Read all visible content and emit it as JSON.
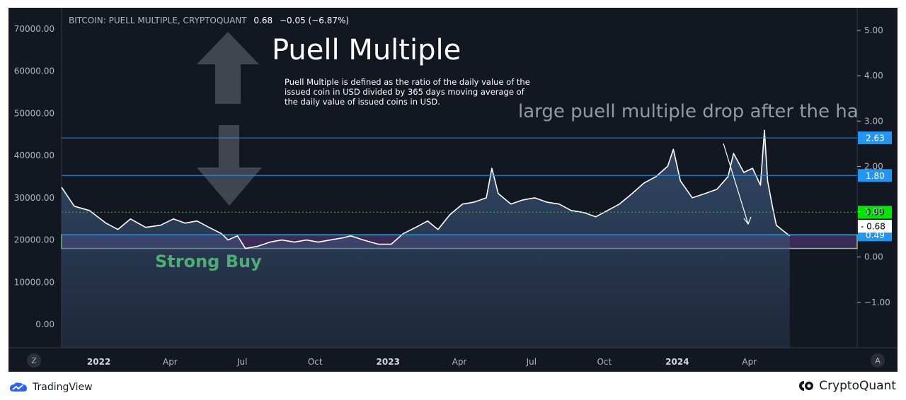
{
  "legend": {
    "symbol": "BITCOIN: PUELL MULTIPLE, CRYPTOQUANT",
    "last": "0.68",
    "change": "−0.05 (−6.87%)"
  },
  "title": "Puell Multiple",
  "description": "Puell Multiple is defined as the ratio of the daily value of the issued coin in USD divided by 365 days moving average of the daily value of issued coins in USD.",
  "annotation": "large puell multiple drop after the halving",
  "zone_label": "Strong Buy",
  "scale_buttons": {
    "left": "Z",
    "right": "A"
  },
  "footer": {
    "left_brand": "TradingView",
    "right_brand": "CryptoQuant"
  },
  "colors": {
    "background": "#131722",
    "price_line": "#ffffff",
    "area_top": "#3d5a80",
    "hline": "#2196f3",
    "dotted_line": "#4caf50",
    "zone_fill": "#3b2a55",
    "zone_border": "#81c784",
    "badge_blue": "#2196f3",
    "badge_green": "#00e600",
    "strong_buy": "#4caf72"
  },
  "chart_data": {
    "type": "area",
    "title": "",
    "left_axis": {
      "ticks": [
        "70000.00",
        "60000.00",
        "50000.00",
        "40000.00",
        "30000.00",
        "20000.00",
        "10000.00",
        "0.00"
      ],
      "range": [
        -5500,
        75000
      ]
    },
    "right_axis": {
      "ticks": [
        "5.00",
        "4.00",
        "3.00",
        "2.00",
        "1.00",
        "0.00",
        "−1.00"
      ],
      "range": [
        -2.0,
        5.5
      ]
    },
    "x_axis": {
      "labels": [
        {
          "text": "2022",
          "date": "2022-01-01",
          "bold": true
        },
        {
          "text": "Apr",
          "date": "2022-04-01",
          "bold": false
        },
        {
          "text": "Jul",
          "date": "2022-07-01",
          "bold": false
        },
        {
          "text": "Oct",
          "date": "2022-10-01",
          "bold": false
        },
        {
          "text": "2023",
          "date": "2023-01-01",
          "bold": true
        },
        {
          "text": "Apr",
          "date": "2023-04-01",
          "bold": false
        },
        {
          "text": "Jul",
          "date": "2023-07-01",
          "bold": false
        },
        {
          "text": "Oct",
          "date": "2023-10-01",
          "bold": false
        },
        {
          "text": "2024",
          "date": "2024-01-01",
          "bold": true
        },
        {
          "text": "Apr",
          "date": "2024-04-01",
          "bold": false
        }
      ],
      "range": [
        "2021-11-15",
        "2024-08-15"
      ]
    },
    "series": [
      {
        "points": [
          [
            "2021-11-15",
            32500
          ],
          [
            "2021-12-01",
            28000
          ],
          [
            "2021-12-20",
            27000
          ],
          [
            "2022-01-10",
            24000
          ],
          [
            "2022-01-25",
            22500
          ],
          [
            "2022-02-10",
            25000
          ],
          [
            "2022-03-01",
            23000
          ],
          [
            "2022-03-20",
            23500
          ],
          [
            "2022-04-05",
            25000
          ],
          [
            "2022-04-20",
            24000
          ],
          [
            "2022-05-05",
            24500
          ],
          [
            "2022-05-20",
            23000
          ],
          [
            "2022-06-05",
            21500
          ],
          [
            "2022-06-13",
            20000
          ],
          [
            "2022-06-25",
            21000
          ],
          [
            "2022-07-05",
            18000
          ],
          [
            "2022-07-20",
            18500
          ],
          [
            "2022-08-05",
            19500
          ],
          [
            "2022-08-20",
            20000
          ],
          [
            "2022-09-05",
            19500
          ],
          [
            "2022-09-20",
            20000
          ],
          [
            "2022-10-05",
            19500
          ],
          [
            "2022-10-20",
            20000
          ],
          [
            "2022-11-05",
            20500
          ],
          [
            "2022-11-15",
            21000
          ],
          [
            "2022-12-01",
            20000
          ],
          [
            "2022-12-20",
            19000
          ],
          [
            "2023-01-05",
            19000
          ],
          [
            "2023-01-20",
            21500
          ],
          [
            "2023-02-05",
            23000
          ],
          [
            "2023-02-20",
            24500
          ],
          [
            "2023-03-05",
            22500
          ],
          [
            "2023-03-20",
            26000
          ],
          [
            "2023-04-05",
            28500
          ],
          [
            "2023-04-20",
            29000
          ],
          [
            "2023-05-05",
            30000
          ],
          [
            "2023-05-12",
            37000
          ],
          [
            "2023-05-20",
            31000
          ],
          [
            "2023-06-05",
            28500
          ],
          [
            "2023-06-20",
            29500
          ],
          [
            "2023-07-05",
            30000
          ],
          [
            "2023-07-20",
            29000
          ],
          [
            "2023-08-05",
            28500
          ],
          [
            "2023-08-20",
            27000
          ],
          [
            "2023-09-05",
            26500
          ],
          [
            "2023-09-20",
            25500
          ],
          [
            "2023-10-05",
            27000
          ],
          [
            "2023-10-20",
            28500
          ],
          [
            "2023-11-05",
            31000
          ],
          [
            "2023-11-20",
            33500
          ],
          [
            "2023-12-05",
            35000
          ],
          [
            "2023-12-20",
            37500
          ],
          [
            "2023-12-27",
            41500
          ],
          [
            "2024-01-05",
            34000
          ],
          [
            "2024-01-20",
            30000
          ],
          [
            "2024-02-05",
            31000
          ],
          [
            "2024-02-20",
            32000
          ],
          [
            "2024-03-05",
            35000
          ],
          [
            "2024-03-12",
            40500
          ],
          [
            "2024-03-25",
            36000
          ],
          [
            "2024-04-05",
            37000
          ],
          [
            "2024-04-15",
            33000
          ],
          [
            "2024-04-20",
            46000
          ],
          [
            "2024-04-24",
            34000
          ],
          [
            "2024-04-30",
            28000
          ],
          [
            "2024-05-05",
            23500
          ],
          [
            "2024-05-15",
            22000
          ],
          [
            "2024-05-22",
            21000
          ]
        ]
      }
    ],
    "horizontal_lines": [
      {
        "name": "level-2.63",
        "right_value": 2.63,
        "style": "solid",
        "badge": "2.63"
      },
      {
        "name": "level-1.80",
        "right_value": 1.8,
        "style": "solid",
        "badge": "1.80"
      },
      {
        "name": "level-0.49",
        "right_value": 0.49,
        "style": "solid",
        "badge": "0.49"
      },
      {
        "name": "level-0.99",
        "right_value": 0.99,
        "style": "dotted",
        "badge": "0.99"
      }
    ],
    "last_value_badge": "0.68",
    "zone": {
      "label": "Strong Buy",
      "right_from": 0.19,
      "right_to": 0.49,
      "x_end": "2024-08-15"
    }
  }
}
